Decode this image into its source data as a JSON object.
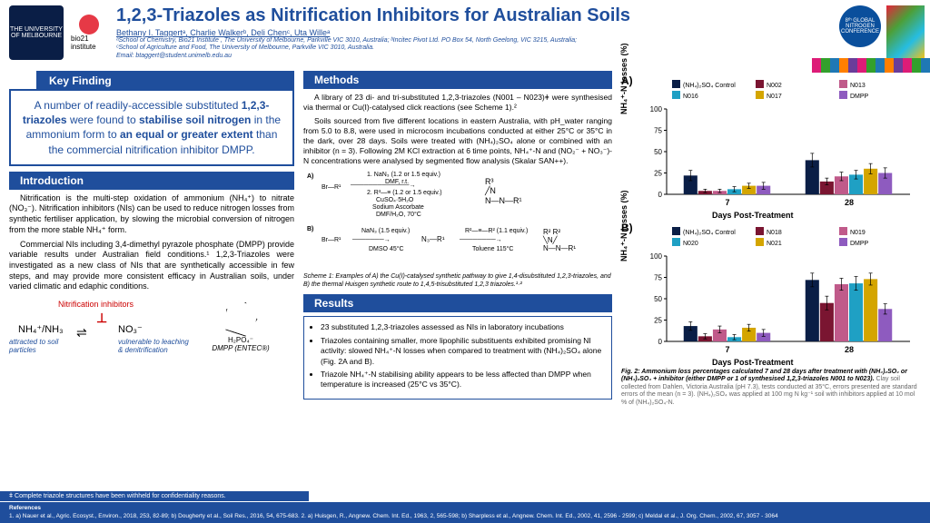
{
  "header": {
    "title": "1,2,3-Triazoles as Nitrification Inhibitors for Australian Soils",
    "authors": "Bethany I. Taggertᵃ, Charlie Walkerᵇ, Deli Chenᶜ, Uta Willeᵃ",
    "affil1": "ᵃSchool of Chemistry, Bio21 Institute , The University of Melbourne, Parkville VIC 3010, Australia; ᵇIncitec Pivot Ltd. PO Box 54, North Geelong, VIC 3215, Australia;",
    "affil2": "ᶜSchool of Agriculture and Food, The University of Melbourne, Parkville VIC 3010, Australia.",
    "email": "Email: btaggert@student.unimelb.edu.au",
    "uni": "THE UNIVERSITY OF MELBOURNE",
    "bio21": "bio21 institute",
    "conf": "8ᵗʰ GLOBAL NITROGEN CONFERENCE"
  },
  "key": {
    "tab": "Key Finding",
    "text_pre": "A number of readily-accessible substituted ",
    "b1": "1,2,3-triazoles",
    "text_mid1": " were found to ",
    "b2": "stabilise soil nitrogen",
    "text_mid2": " in the ammonium form to ",
    "b3": "an equal or greater extent",
    "text_post": " than the commercial nitrification inhibitor DMPP."
  },
  "intro": {
    "tab": "Introduction",
    "p1": "Nitrification is the multi-step oxidation of ammonium (NH₄⁺) to nitrate (NO₃⁻). Nitrification inhibitors (NIs) can be used to reduce nitrogen losses from synthetic fertiliser application, by slowing the microbial conversion of nitrogen from the more stable NH₄⁺ form.",
    "p2": "Commercial NIs including 3,4-dimethyl pyrazole phosphate (DMPP) provide variable results under Australian field conditions.¹ 1,2,3-Triazoles were investigated as a new class of NIs that are synthetically accessible in few steps, and may provide more consistent efficacy in Australian soils, under varied climatic and edaphic conditions.",
    "inhib": "Nitrification inhibitors",
    "nh4": "NH₄⁺/NH₃",
    "no3": "NO₃⁻",
    "attracted": "attracted to soil particles",
    "vulnerable": "vulnerable to leaching & denitrification",
    "dmpp_formula": "H₂PO₄⁻",
    "dmpp_name": "DMPP (ENTEC®)"
  },
  "methods": {
    "tab": "Methods",
    "p1": "A library of 23 di- and tri-substituted 1,2,3-triazoles (N001 – N023)ǂ were synthesised via thermal or Cu(I)-catalysed click reactions (see Scheme 1).²",
    "p2": "Soils sourced from five different locations in eastern Australia, with pH_water ranging from 5.0 to 8.8, were used in microcosm incubations conducted at either 25°C or 35°C in the dark, over 28 days. Soils were treated with (NH₄)₂SO₄ alone or combined with an inhibitor (n = 3). Following 2M KCl extraction at 6 time points, NH₄⁺-N and (NO₂⁻ + NO₃⁻)-N concentrations were analysed by segmented flow analysis (Skalar SAN++).",
    "scheme_caption": "Scheme 1: Examples of A) the Cu(I)-catalysed synthetic pathway to give 1,4-disubstituted 1,2,3-triazoles, and B) the thermal Huisgen synthetic route to 1,4,5-trisubstituted 1,2,3 triazoles.¹·²",
    "sA1": "1. NaN₃ (1.2 or 1.5 equiv.)",
    "sA2": "DMF, r.t.",
    "sA3": "2. R³—≡ (1.2 or 1.5 equiv.)",
    "sA4": "CuSO₄·5H₂O",
    "sA5": "Sodium Ascorbate",
    "sA6": "DMF/H₂O, 70°C",
    "sB1": "NaN₃ (1.5 equiv.)",
    "sB2": "DMSO 45°C",
    "sB3": "R²—≡—R² (1.1 equiv.)",
    "sB4": "Toluene 115°C",
    "br1": "Br—R¹",
    "tri": "N—N—N—R¹"
  },
  "results": {
    "tab": "Results",
    "li1": "23 substituted 1,2,3-triazoles assessed as NIs in laboratory incubations",
    "li2": "Triazoles containing smaller, more lipophilic substituents exhibited promising NI activity: slowed NH₄⁺-N losses when compared to treatment with (NH₄)₂SO₄ alone (Fig. 2A and B).",
    "li3": "Triazole NH₄⁺-N stabilising ability appears to be less affected than DMPP when temperature is increased (25°C vs 35°C)."
  },
  "chartA": {
    "label": "A)",
    "ylabel": "NH₄⁺-N losses (%)",
    "xlabel": "Days Post-Treatment",
    "ylim": [
      0,
      100
    ],
    "yticks": [
      0,
      25,
      50,
      75,
      100
    ],
    "categories": [
      "7",
      "28"
    ],
    "series": [
      {
        "name": "(NH₄)₂SO₄ Control",
        "color": "#0a1e46",
        "vals": [
          22,
          40
        ],
        "err": [
          6,
          8
        ]
      },
      {
        "name": "N002",
        "color": "#7a1531",
        "vals": [
          4,
          15
        ],
        "err": [
          2,
          4
        ]
      },
      {
        "name": "N013",
        "color": "#c05a8a",
        "vals": [
          4,
          21
        ],
        "err": [
          2,
          5
        ]
      },
      {
        "name": "N016",
        "color": "#1fa0c4",
        "vals": [
          6,
          23
        ],
        "err": [
          3,
          5
        ]
      },
      {
        "name": "N017",
        "color": "#d4a500",
        "vals": [
          10,
          30
        ],
        "err": [
          3,
          6
        ]
      },
      {
        "name": "DMPP",
        "color": "#8e5bbf",
        "vals": [
          10,
          25
        ],
        "err": [
          4,
          6
        ]
      }
    ]
  },
  "chartB": {
    "label": "B)",
    "ylabel": "NH₄⁺-N losses (%)",
    "xlabel": "Days Post-Treatment",
    "ylim": [
      0,
      100
    ],
    "yticks": [
      0,
      25,
      50,
      75,
      100
    ],
    "categories": [
      "7",
      "28"
    ],
    "series": [
      {
        "name": "(NH₄)₂SO₄ Control",
        "color": "#0a1e46",
        "vals": [
          18,
          72
        ],
        "err": [
          5,
          8
        ]
      },
      {
        "name": "N018",
        "color": "#7a1531",
        "vals": [
          6,
          45
        ],
        "err": [
          3,
          8
        ]
      },
      {
        "name": "N019",
        "color": "#c05a8a",
        "vals": [
          14,
          67
        ],
        "err": [
          4,
          7
        ]
      },
      {
        "name": "N020",
        "color": "#1fa0c4",
        "vals": [
          5,
          68
        ],
        "err": [
          3,
          8
        ]
      },
      {
        "name": "N021",
        "color": "#d4a500",
        "vals": [
          16,
          73
        ],
        "err": [
          4,
          7
        ]
      },
      {
        "name": "DMPP",
        "color": "#8e5bbf",
        "vals": [
          10,
          38
        ],
        "err": [
          4,
          6
        ]
      }
    ]
  },
  "fig2_caption": "Fig. 2: Ammonium loss percentages calculated 7 and 28 days after treatment with (NH₄)₂SO₄ or (NH₄)₂SO₄ + inhibitor (either DMPP or 1 of synthesised 1,2,3-triazoles N001 to N023).",
  "fig2_caption2": " Clay soil collected from Dahlen, Victoria Australia (pH 7.3), tests conducted at 35°C, errors presented are standard errors of the mean (n = 3). (NH₄)₂SO₄ was applied at 100 mg N kg⁻¹ soil with inhibitors applied at 10 mol % of (NH₄)₂SO₄-N.",
  "footnote": "ǂ Complete triazole structures have been withheld for confidentiality reasons.",
  "refs_label": "References",
  "refs": "1. a) Nauer et al., Agric. Ecosyst., Environ., 2018, 253, 82-89; b) Dougherty et al., Soil Res., 2016, 54, 675-683. 2. a) Huisgen, R., Angnew. Chem. Int. Ed., 1963, 2, 565-598; b) Sharpless et al., Angnew. Chem. Int. Ed., 2002, 41, 2596 - 2599; c) Meldal et al., J. Org. Chem., 2002, 67, 3057 - 3064"
}
